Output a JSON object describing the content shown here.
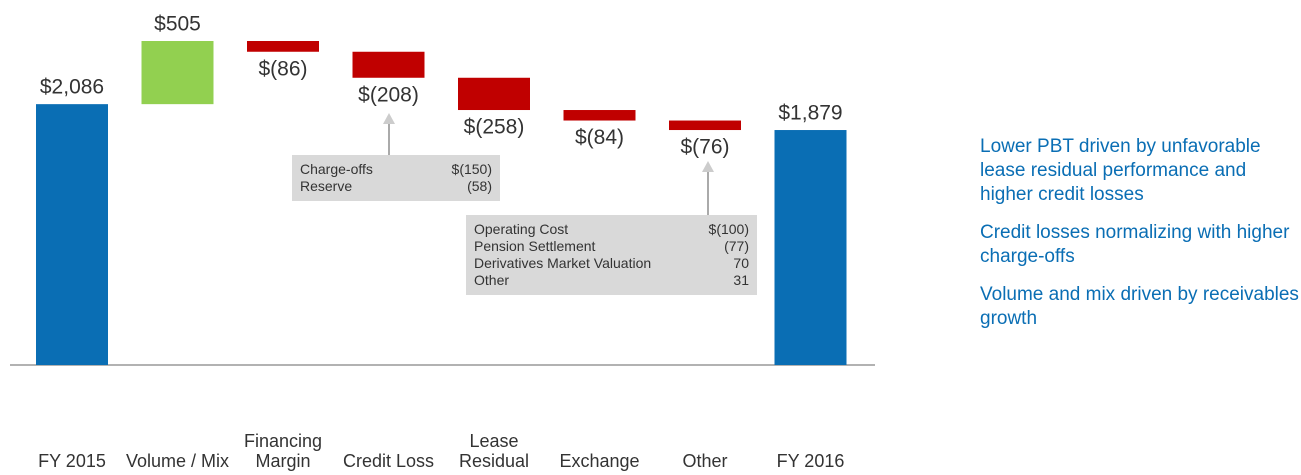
{
  "chart_data": {
    "type": "waterfall",
    "categories": [
      "FY 2015",
      "Volume / Mix",
      "Financing Margin",
      "Credit Loss",
      "Lease Residual",
      "Exchange",
      "Other",
      "FY 2016"
    ],
    "values": [
      2086,
      505,
      -86,
      -208,
      -258,
      -84,
      -76,
      1879
    ],
    "value_labels": [
      "$2,086",
      "$505",
      "$(86)",
      "$(208)",
      "$(258)",
      "$(84)",
      "$(76)",
      "$1,879"
    ],
    "measure": [
      "absolute",
      "relative",
      "relative",
      "relative",
      "relative",
      "relative",
      "relative",
      "total"
    ],
    "colors": {
      "total": "#0a6eb4",
      "increase": "#92d050",
      "decrease": "#c00000"
    },
    "annotations": [
      {
        "category": 3,
        "rows": [
          [
            "Charge-offs",
            "$(150)"
          ],
          [
            "Reserve",
            "(58)"
          ]
        ]
      },
      {
        "category": 6,
        "rows": [
          [
            "Operating Cost",
            "$(100)"
          ],
          [
            "Pension Settlement",
            "(77)"
          ],
          [
            "Derivatives Market Valuation",
            "70"
          ],
          [
            "Other",
            "31"
          ]
        ]
      }
    ],
    "notes": [
      "Lower PBT driven by unfavorable lease residual performance and higher credit losses",
      "Credit losses normalizing with higher charge-offs",
      "Volume and mix driven by receivables growth"
    ]
  }
}
